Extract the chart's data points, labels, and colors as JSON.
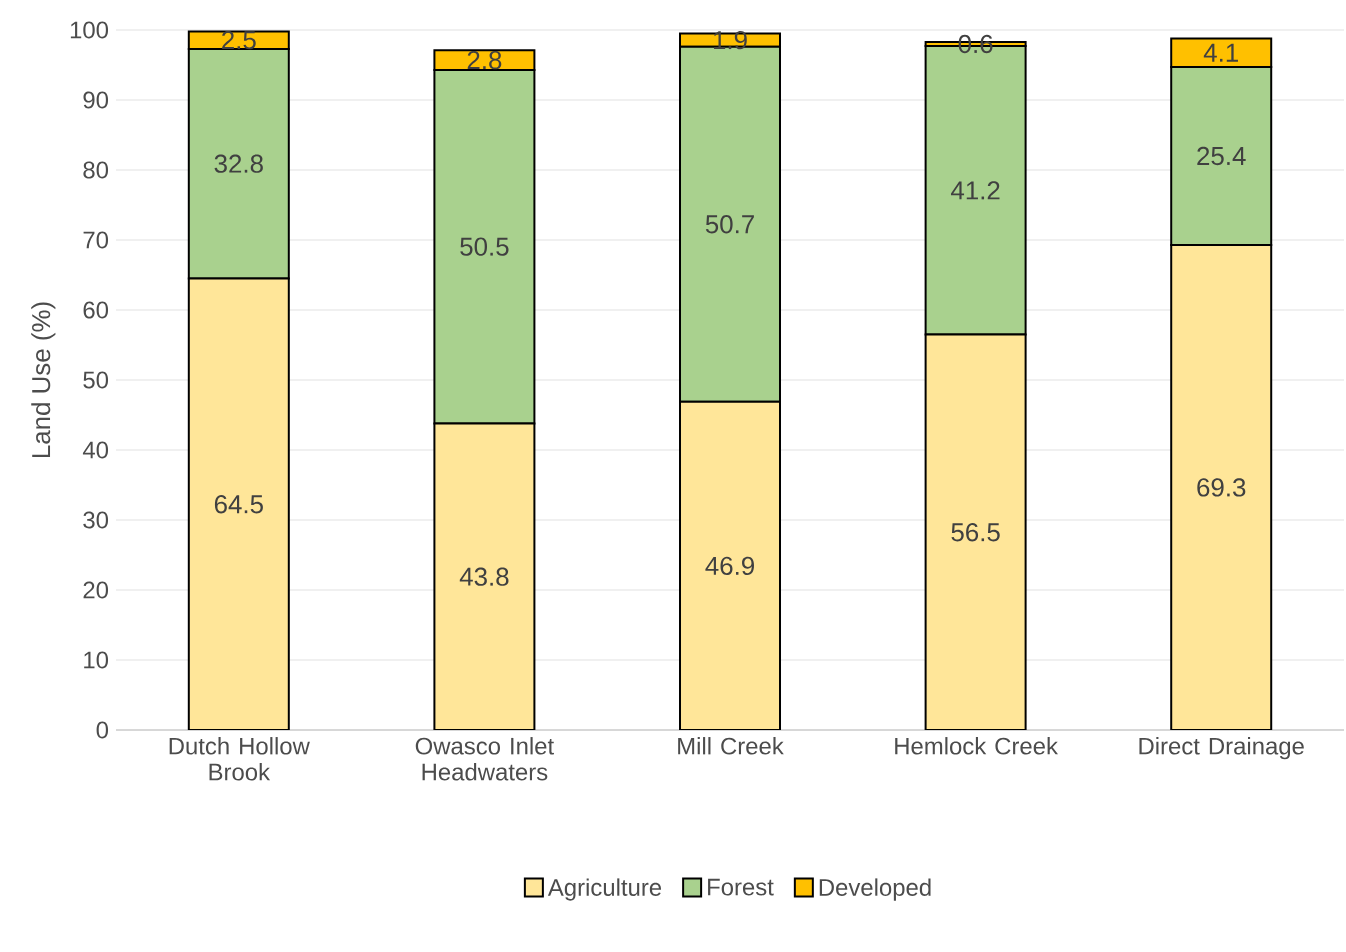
{
  "chart_data": {
    "type": "bar",
    "stacked": true,
    "ylabel": "Land Use (%)",
    "categories": [
      "Dutch Hollow Brook",
      "Owasco Inlet Headwaters",
      "Mill Creek",
      "Hemlock Creek",
      "Direct Drainage"
    ],
    "series": [
      {
        "name": "Agriculture",
        "color": "#ffe699",
        "values": [
          64.5,
          43.8,
          46.9,
          56.5,
          69.3
        ]
      },
      {
        "name": "Forest",
        "color": "#a9d18e",
        "values": [
          32.8,
          50.5,
          50.7,
          41.2,
          25.4
        ]
      },
      {
        "name": "Developed",
        "color": "#ffc000",
        "values": [
          2.5,
          2.8,
          1.9,
          0.6,
          4.1
        ]
      }
    ],
    "ylim": [
      0,
      100
    ],
    "yticks": [
      0,
      10,
      20,
      30,
      40,
      50,
      60,
      70,
      80,
      90,
      100
    ],
    "grid": "y",
    "legend": "bottom",
    "data_labels": true
  }
}
